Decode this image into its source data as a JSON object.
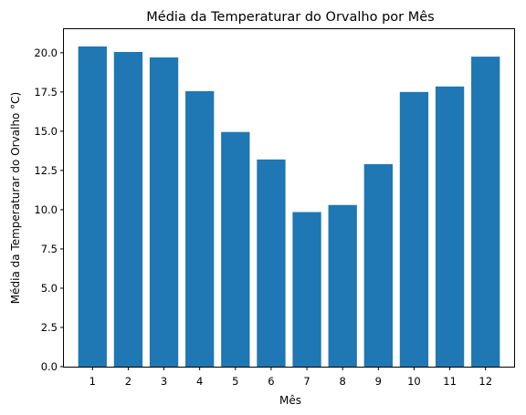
{
  "chart_data": {
    "type": "bar",
    "title": "Média da Temperaturar do Orvalho por Mês",
    "xlabel": "Mês",
    "ylabel": "Média da Temperaturar do Orvalho °C)",
    "categories": [
      "1",
      "2",
      "3",
      "4",
      "5",
      "6",
      "7",
      "8",
      "9",
      "10",
      "11",
      "12"
    ],
    "values": [
      20.4,
      20.05,
      19.7,
      17.55,
      14.95,
      13.2,
      9.85,
      10.3,
      12.9,
      17.5,
      17.85,
      19.75
    ],
    "ylim": [
      0,
      21.5
    ],
    "yticks": [
      "0.0",
      "2.5",
      "5.0",
      "7.5",
      "10.0",
      "12.5",
      "15.0",
      "17.5",
      "20.0"
    ],
    "bar_color": "#1f77b4",
    "grid": false,
    "legend": "none"
  }
}
